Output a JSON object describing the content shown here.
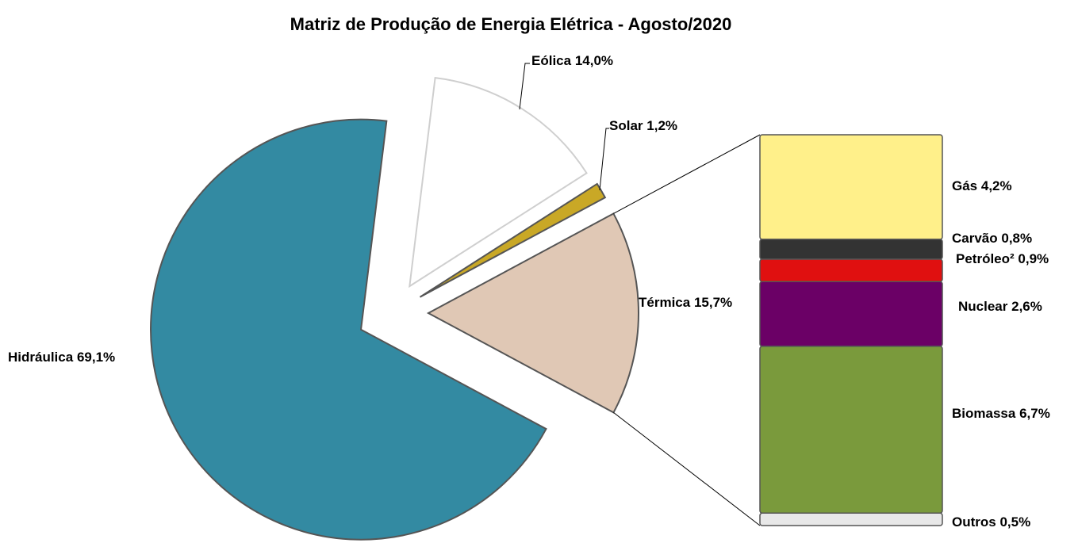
{
  "chart_data": {
    "type": "pie-of-bar",
    "title": "Matriz de Produção de Energia Elétrica - Agosto/2020",
    "categories": [
      "Eólica",
      "Solar",
      "Térmica",
      "Hidráulica"
    ],
    "values": [
      14.0,
      1.2,
      15.7,
      69.1
    ],
    "value_labels": [
      "14,0%",
      "1,2%",
      "15,7%",
      "69,1%"
    ],
    "colors": [
      "#ffffff",
      "#c9a826",
      "#e0c8b5",
      "#338aa2"
    ],
    "breakdown": {
      "categories": [
        "Gás",
        "Carvão",
        "Petróleo²",
        "Nuclear",
        "Biomassa",
        "Outros"
      ],
      "values": [
        4.2,
        0.8,
        0.9,
        2.6,
        6.7,
        0.5
      ],
      "value_labels": [
        "4,2%",
        "0,8%",
        "0,9%",
        "2,6%",
        "6,7%",
        "0,5%"
      ],
      "colors": [
        "#fff08a",
        "#333333",
        "#e01010",
        "#6b0066",
        "#7a9a3c",
        "#e8e8e8"
      ]
    }
  }
}
